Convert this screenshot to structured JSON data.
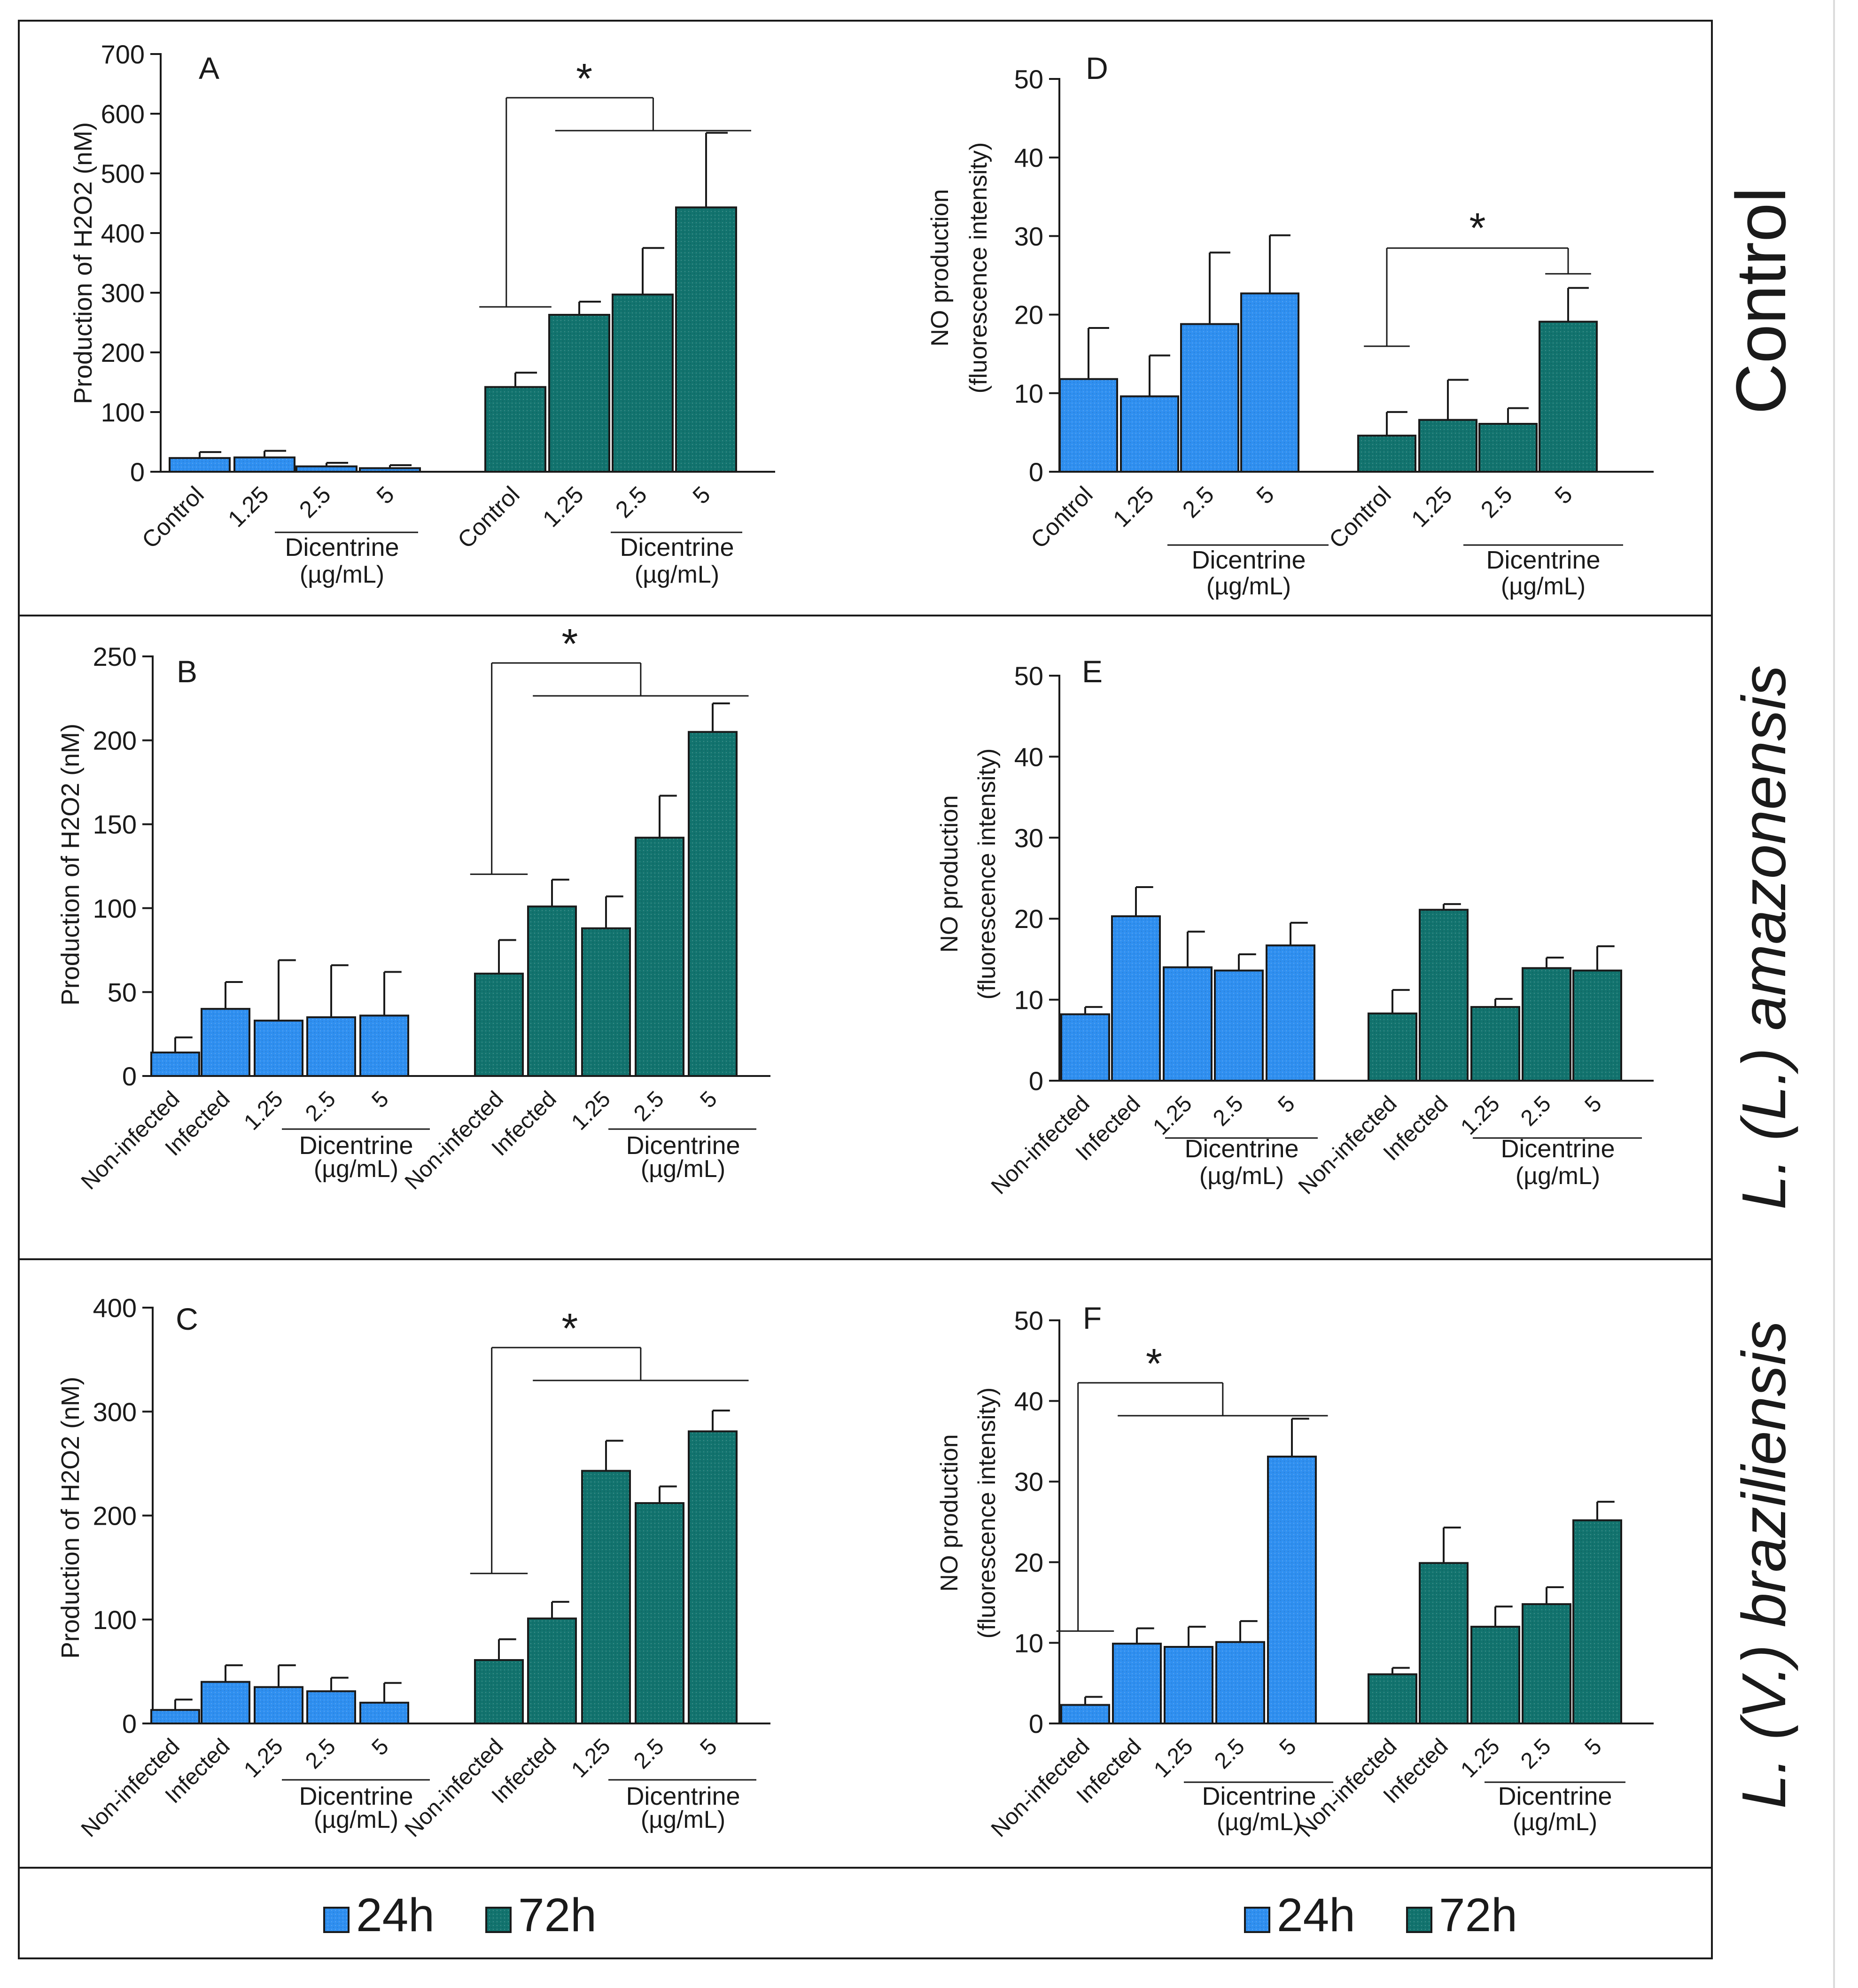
{
  "colors": {
    "c24": "#2f8ff0",
    "c72": "#12736e",
    "axis": "#1a1a1a"
  },
  "row_labels": [
    {
      "text": "Control",
      "italic": false
    },
    {
      "text": "L. (L.) amazonensis",
      "italic": true
    },
    {
      "text": "L. (V.)  braziliensis",
      "italic": true
    }
  ],
  "legend": {
    "label_24": "24h",
    "label_72": "72h"
  },
  "chart_data": [
    {
      "panel": "A",
      "type": "bar",
      "ylabel": "Production of H2O2 (nM)",
      "ylim": [
        0,
        700
      ],
      "yticks": [
        0,
        100,
        200,
        300,
        400,
        500,
        600,
        700
      ],
      "group_label": "Dicentrine",
      "group_unit": "(µg/mL)",
      "groups": [
        {
          "name": "24h",
          "categories": [
            "Control",
            "1.25",
            "2.5",
            "5"
          ],
          "values": [
            23,
            24,
            9,
            6
          ],
          "errors": [
            10,
            11,
            6,
            5
          ]
        },
        {
          "name": "72h",
          "categories": [
            "Control",
            "1.25",
            "2.5",
            "5"
          ],
          "values": [
            142,
            263,
            297,
            443
          ],
          "errors": [
            24,
            22,
            78,
            125
          ]
        }
      ],
      "significance": [
        {
          "label": "*",
          "from": [
            1,
            0
          ],
          "to": [
            1,
            1
          ],
          "to_end": [
            1,
            3
          ]
        }
      ]
    },
    {
      "panel": "B",
      "type": "bar",
      "ylabel": "Production of H2O2 (nM)",
      "ylim": [
        0,
        250
      ],
      "yticks": [
        0,
        50,
        100,
        150,
        200,
        250
      ],
      "group_label": "Dicentrine",
      "group_unit": "(µg/mL)",
      "groups": [
        {
          "name": "24h",
          "categories": [
            "Non-infected",
            "Infected",
            "1.25",
            "2.5",
            "5"
          ],
          "values": [
            14,
            40,
            33,
            35,
            36
          ],
          "errors": [
            9,
            16,
            36,
            31,
            26
          ]
        },
        {
          "name": "72h",
          "categories": [
            "Non-infected",
            "Infected",
            "1.25",
            "2.5",
            "5"
          ],
          "values": [
            61,
            101,
            88,
            142,
            205
          ],
          "errors": [
            20,
            16,
            19,
            25,
            17
          ]
        }
      ],
      "significance": [
        {
          "label": "*",
          "from": [
            1,
            0
          ],
          "to": [
            1,
            1
          ],
          "to_end": [
            1,
            4
          ],
          "target": [
            1,
            4
          ]
        }
      ]
    },
    {
      "panel": "C",
      "type": "bar",
      "ylabel": "Production of H2O2 (nM)",
      "ylim": [
        0,
        400
      ],
      "yticks": [
        0,
        100,
        200,
        300,
        400
      ],
      "group_label": "Dicentrine",
      "group_unit": "(µg/mL)",
      "groups": [
        {
          "name": "24h",
          "categories": [
            "Non-infected",
            "Infected",
            "1.25",
            "2.5",
            "5"
          ],
          "values": [
            13,
            40,
            35,
            31,
            20
          ],
          "errors": [
            10,
            16,
            21,
            13,
            19
          ]
        },
        {
          "name": "72h",
          "categories": [
            "Non-infected",
            "Infected",
            "1.25",
            "2.5",
            "5"
          ],
          "values": [
            61,
            101,
            243,
            212,
            281
          ],
          "errors": [
            20,
            16,
            29,
            16,
            20
          ]
        }
      ],
      "significance": [
        {
          "label": "*",
          "from": [
            1,
            0
          ],
          "to": [
            1,
            1
          ],
          "to_end": [
            1,
            4
          ]
        }
      ]
    },
    {
      "panel": "D",
      "type": "bar",
      "ylabel": "NO production",
      "ylabel2": "(fluorescence intensity)",
      "ylim": [
        0,
        50
      ],
      "yticks": [
        0,
        10,
        20,
        30,
        40,
        50
      ],
      "group_label": "Dicentrine",
      "group_unit": "(µg/mL)",
      "groups": [
        {
          "name": "24h",
          "categories": [
            "Control",
            "1.25",
            "2.5",
            "5"
          ],
          "values": [
            11.8,
            9.6,
            18.8,
            22.7
          ],
          "errors": [
            6.5,
            5.2,
            9.1,
            7.4
          ]
        },
        {
          "name": "72h",
          "categories": [
            "Control",
            "1.25",
            "2.5",
            "5"
          ],
          "values": [
            4.6,
            6.6,
            6.1,
            19.1
          ],
          "errors": [
            3.0,
            5.1,
            2.0,
            4.3
          ]
        }
      ],
      "significance": [
        {
          "label": "*",
          "from": [
            1,
            0
          ],
          "to": [
            1,
            3
          ],
          "target": [
            1,
            3
          ]
        }
      ]
    },
    {
      "panel": "E",
      "type": "bar",
      "ylabel": "NO production",
      "ylabel2": "(fluorescence intensity)",
      "ylim": [
        0,
        50
      ],
      "yticks": [
        0,
        10,
        20,
        30,
        40,
        50
      ],
      "group_label": "Dicentrine",
      "group_unit": "(µg/mL)",
      "groups": [
        {
          "name": "24h",
          "categories": [
            "Non-infected",
            "Infected",
            "1.25",
            "2.5",
            "5"
          ],
          "values": [
            8.2,
            20.3,
            14.0,
            13.6,
            16.7
          ],
          "errors": [
            0.9,
            3.6,
            4.4,
            2.0,
            2.8
          ]
        },
        {
          "name": "72h",
          "categories": [
            "Non-infected",
            "Infected",
            "1.25",
            "2.5",
            "5"
          ],
          "values": [
            8.3,
            21.1,
            9.1,
            13.9,
            13.6
          ],
          "errors": [
            2.9,
            0.7,
            1.0,
            1.3,
            3.0
          ]
        }
      ],
      "significance": []
    },
    {
      "panel": "F",
      "type": "bar",
      "ylabel": "NO production",
      "ylabel2": "(fluorescence intensity)",
      "ylim": [
        0,
        50
      ],
      "yticks": [
        0,
        10,
        20,
        30,
        40,
        50
      ],
      "group_label": "Dicentrine",
      "group_unit": "(µg/mL)",
      "groups": [
        {
          "name": "24h",
          "categories": [
            "Non-infected",
            "Infected",
            "1.25",
            "2.5",
            "5"
          ],
          "values": [
            2.3,
            9.9,
            9.5,
            10.1,
            33.1
          ],
          "errors": [
            1.0,
            1.9,
            2.5,
            2.6,
            4.7
          ]
        },
        {
          "name": "72h",
          "categories": [
            "Non-infected",
            "Infected",
            "1.25",
            "2.5",
            "5"
          ],
          "values": [
            6.1,
            19.9,
            12.0,
            14.8,
            25.2
          ],
          "errors": [
            0.8,
            4.4,
            2.5,
            2.1,
            2.3
          ]
        }
      ],
      "significance": [
        {
          "label": "*",
          "from": [
            0,
            0
          ],
          "to": [
            0,
            1
          ],
          "to_end": [
            0,
            4
          ],
          "target": [
            0,
            4
          ]
        }
      ]
    }
  ]
}
